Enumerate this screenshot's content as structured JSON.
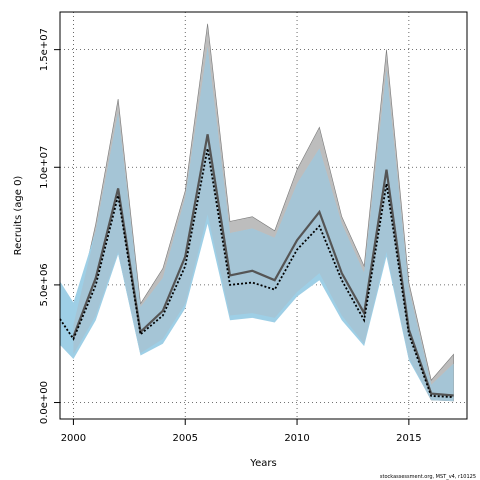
{
  "chart_data": {
    "type": "area",
    "xlabel": "Years",
    "ylabel": "Recruits (age 0)",
    "xlim": [
      1999.4,
      2017.6
    ],
    "ylim": [
      -700000,
      16600000
    ],
    "x_ticks": [
      2000,
      2005,
      2010,
      2015
    ],
    "x_tick_labels": [
      "2000",
      "2005",
      "2010",
      "2015"
    ],
    "y_ticks": [
      0,
      5000000,
      10000000,
      15000000
    ],
    "y_tick_labels": [
      "0.0e+00",
      "5.0e+06",
      "1.0e+07",
      "1.5e+07"
    ],
    "grid": true,
    "footer": "stockassessment.org, MST_v4, r10125",
    "colors": {
      "grey_band": "#bdbdbd",
      "grey_band_edge": "#7a7a7a",
      "blue_band": "#9ecfe6",
      "overlap_band": "#a5c5d6",
      "grey_line": "#555555",
      "dotted_line": "#000000"
    },
    "x": [
      1999.4,
      2000,
      2001,
      2002,
      2003,
      2004,
      2005,
      2006,
      2007,
      2008,
      2009,
      2010,
      2011,
      2012,
      2013,
      2014,
      2015,
      2016,
      2017
    ],
    "series": [
      {
        "role": "grey_band",
        "lower": [
          null,
          2050000,
          3700000,
          6400000,
          2100000,
          2700000,
          4200000,
          8000000,
          3700000,
          3800000,
          3600000,
          4700000,
          5500000,
          3700000,
          2500000,
          6400000,
          1900000,
          110000,
          70000
        ],
        "upper": [
          null,
          3300000,
          7600000,
          12900000,
          4200000,
          5700000,
          9000000,
          16100000,
          7700000,
          7900000,
          7300000,
          9900000,
          11700000,
          7900000,
          5800000,
          15000000,
          5100000,
          950000,
          2050000
        ],
        "center": [
          null,
          2800000,
          5300000,
          9100000,
          3000000,
          3900000,
          6200000,
          11400000,
          5400000,
          5600000,
          5200000,
          6900000,
          8100000,
          5500000,
          3800000,
          9900000,
          3100000,
          380000,
          300000
        ]
      },
      {
        "role": "blue_band",
        "lower": [
          2450000,
          1850000,
          3500000,
          6300000,
          2000000,
          2500000,
          4000000,
          7600000,
          3500000,
          3600000,
          3400000,
          4500000,
          5200000,
          3500000,
          2400000,
          6200000,
          1800000,
          100000,
          60000
        ],
        "upper": [
          5150000,
          4250000,
          7300000,
          12300000,
          4050000,
          5300000,
          8700000,
          15100000,
          7200000,
          7400000,
          7000000,
          9300000,
          10800000,
          7600000,
          5500000,
          14100000,
          4800000,
          750000,
          1650000
        ],
        "center": [
          3550000,
          2700000,
          5000000,
          8800000,
          2900000,
          3700000,
          5800000,
          10800000,
          5000000,
          5100000,
          4800000,
          6500000,
          7500000,
          5200000,
          3500000,
          9300000,
          2900000,
          280000,
          230000
        ]
      }
    ]
  }
}
